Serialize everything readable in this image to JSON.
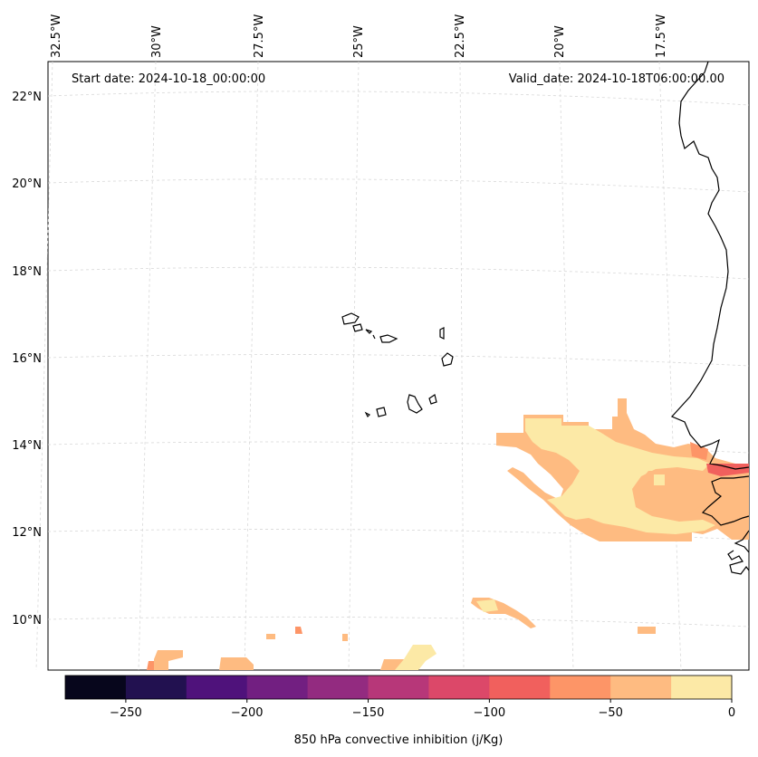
{
  "map": {
    "start_date": "Start date: 2024-10-18_00:00:00",
    "valid_date": "Valid_date: 2024-10-18T06:00:00.00",
    "lon_labels": [
      "32.5°W",
      "30°W",
      "27.5°W",
      "25°W",
      "22.5°W",
      "20°W",
      "17.5°W"
    ],
    "lat_labels": [
      "22°N",
      "20°N",
      "18°N",
      "16°N",
      "14°N",
      "12°N",
      "10°N"
    ],
    "coastline_color": "#000000",
    "gridline_color": "#cccccc"
  },
  "colorbar": {
    "label": "850 hPa convective inhibition (j/Kg)",
    "tick_labels": [
      "−250",
      "−200",
      "−150",
      "−100",
      "−50",
      "0"
    ],
    "range": [
      -275,
      0
    ],
    "bins": [
      {
        "from": -275,
        "to": -250,
        "color": "#07061c"
      },
      {
        "from": -250,
        "to": -225,
        "color": "#221150"
      },
      {
        "from": -225,
        "to": -200,
        "color": "#4f127b"
      },
      {
        "from": -200,
        "to": -175,
        "color": "#721f81"
      },
      {
        "from": -175,
        "to": -150,
        "color": "#932b80"
      },
      {
        "from": -150,
        "to": -125,
        "color": "#b73779"
      },
      {
        "from": -125,
        "to": -100,
        "color": "#dc4869"
      },
      {
        "from": -100,
        "to": -75,
        "color": "#f1605d"
      },
      {
        "from": -75,
        "to": -50,
        "color": "#fd9567"
      },
      {
        "from": -50,
        "to": -25,
        "color": "#febb81"
      },
      {
        "from": -25,
        "to": 0,
        "color": "#fce9a6"
      }
    ]
  }
}
